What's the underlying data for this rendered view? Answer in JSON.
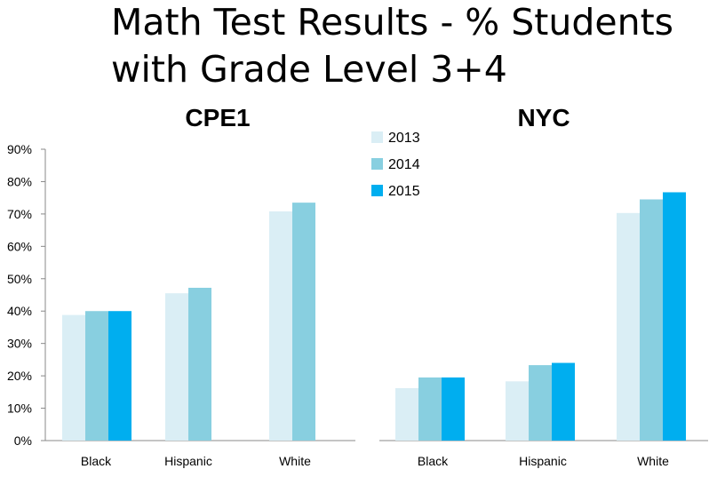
{
  "title_lines": [
    "Math Test Results - % Students",
    "with Grade Level 3+4"
  ],
  "colors": {
    "2013": "#daeef5",
    "2014": "#88cfe0",
    "2015": "#00aeef",
    "axis": "#888888"
  },
  "chart_data": [
    {
      "type": "bar",
      "title": "CPE1",
      "categories": [
        "Black",
        "Hispanic",
        "White"
      ],
      "ylim": [
        0,
        90
      ],
      "yticks": [
        "0%",
        "10%",
        "20%",
        "30%",
        "40%",
        "50%",
        "60%",
        "70%",
        "80%",
        "90%"
      ],
      "series": [
        {
          "name": "2013",
          "values": [
            38.8,
            45.5,
            70.8
          ]
        },
        {
          "name": "2014",
          "values": [
            40,
            47.2,
            73.5
          ]
        },
        {
          "name": "2015",
          "values": [
            40,
            null,
            null
          ]
        }
      ],
      "grid": false
    },
    {
      "type": "bar",
      "title": "NYC",
      "categories": [
        "Black",
        "Hispanic",
        "White"
      ],
      "ylim": [
        0,
        90
      ],
      "series": [
        {
          "name": "2013",
          "values": [
            16.2,
            18.3,
            70.3
          ]
        },
        {
          "name": "2014",
          "values": [
            19.5,
            23.3,
            74.5
          ]
        },
        {
          "name": "2015",
          "values": [
            19.5,
            24,
            76.7
          ]
        }
      ],
      "legend": "top-left",
      "grid": false
    }
  ]
}
